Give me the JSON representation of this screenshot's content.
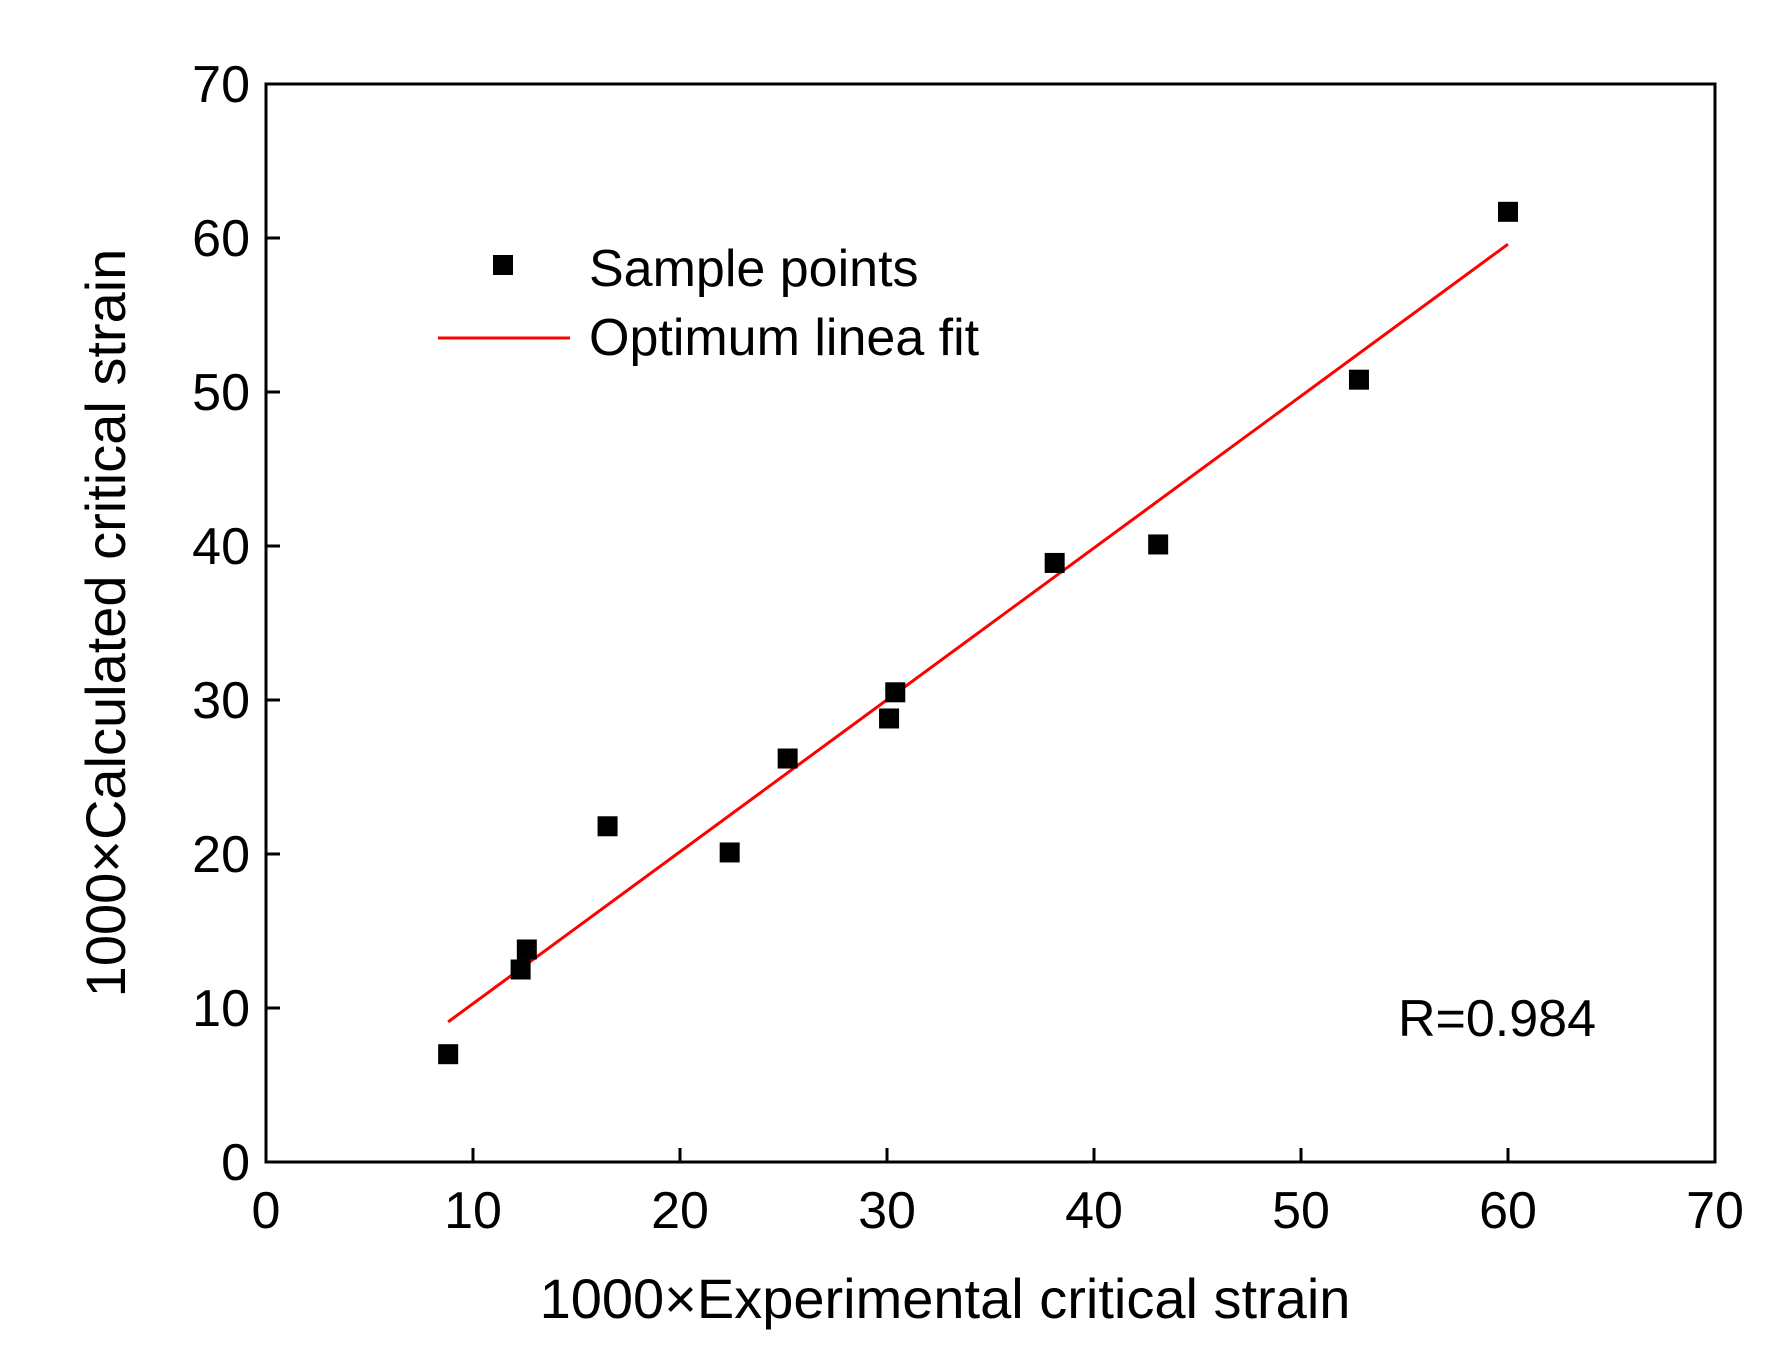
{
  "chart_data": {
    "type": "scatter",
    "title": "",
    "xlabel": "1000×Experimental critical strain",
    "ylabel": "1000×Calculated critical strain",
    "xlim": [
      0,
      70
    ],
    "ylim": [
      0,
      70
    ],
    "xticks": [
      "0",
      "10",
      "20",
      "30",
      "40",
      "50",
      "60",
      "70"
    ],
    "yticks": [
      "0",
      "10",
      "20",
      "30",
      "40",
      "50",
      "60",
      "70"
    ],
    "grid": false,
    "legend_position": "top-left",
    "series": [
      {
        "name": "Sample points",
        "kind": "scatter",
        "marker": "square",
        "color": "#000000",
        "points": [
          {
            "x": 8.8,
            "y": 7.0
          },
          {
            "x": 12.3,
            "y": 12.5
          },
          {
            "x": 12.6,
            "y": 13.8
          },
          {
            "x": 16.5,
            "y": 21.8
          },
          {
            "x": 22.4,
            "y": 20.1
          },
          {
            "x": 25.2,
            "y": 26.2
          },
          {
            "x": 30.1,
            "y": 28.8
          },
          {
            "x": 30.4,
            "y": 30.5
          },
          {
            "x": 38.1,
            "y": 38.9
          },
          {
            "x": 43.1,
            "y": 40.1
          },
          {
            "x": 52.8,
            "y": 50.8
          },
          {
            "x": 60.0,
            "y": 61.7
          }
        ]
      },
      {
        "name": "Optimum linea fit",
        "kind": "line",
        "color": "#ff0000",
        "points": [
          {
            "x": 8.8,
            "y": 9.1
          },
          {
            "x": 60.0,
            "y": 59.6
          }
        ]
      }
    ],
    "annotation": "R=0.984"
  }
}
